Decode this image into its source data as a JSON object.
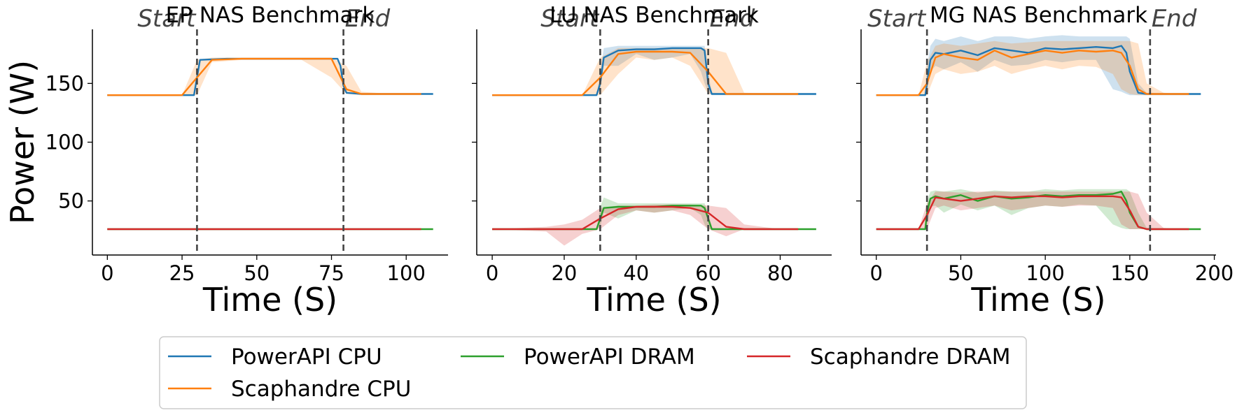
{
  "chart_data": [
    {
      "type": "line",
      "title": "EP NAS Benchmark",
      "xlabel": "Time (S)",
      "ylabel": "Power (W)",
      "xlim": [
        -5,
        114
      ],
      "ylim": [
        4,
        196
      ],
      "xticks": [
        0,
        25,
        50,
        75,
        100
      ],
      "yticks": [
        50,
        100,
        150
      ],
      "markers": [
        {
          "label": "Start",
          "x": 30
        },
        {
          "label": "End",
          "x": 79
        }
      ],
      "series": [
        {
          "name": "PowerAPI CPU",
          "color": "#1f77b4",
          "x": [
            0,
            25,
            29,
            30,
            31,
            40,
            50,
            60,
            70,
            75,
            77,
            78,
            79,
            80,
            85,
            95,
            105,
            109
          ],
          "y": [
            140,
            140,
            140,
            155,
            170,
            171,
            171,
            171,
            171,
            171,
            171,
            165,
            148,
            142,
            141,
            141,
            141,
            141
          ],
          "band_low": [],
          "band_high": []
        },
        {
          "name": "Scaphandre CPU",
          "color": "#ff7f0e",
          "x": [
            0,
            25,
            30,
            35,
            45,
            55,
            65,
            75,
            80,
            85,
            95,
            105
          ],
          "y": [
            140,
            140,
            155,
            170,
            171,
            171,
            171,
            171,
            145,
            141,
            141,
            141
          ],
          "band_low": [
            140,
            140,
            140,
            168,
            170,
            170,
            170,
            155,
            141,
            140,
            140,
            140
          ],
          "band_high": [
            140,
            140,
            170,
            172,
            172,
            172,
            172,
            172,
            165,
            143,
            141,
            141
          ]
        },
        {
          "name": "PowerAPI DRAM",
          "color": "#2ca02c",
          "x": [
            0,
            30,
            60,
            90,
            109
          ],
          "y": [
            26,
            26,
            26,
            26,
            26
          ],
          "band_low": [],
          "band_high": []
        },
        {
          "name": "Scaphandre DRAM",
          "color": "#d62728",
          "x": [
            0,
            30,
            60,
            90,
            105
          ],
          "y": [
            26,
            26,
            26,
            26,
            26
          ],
          "band_low": [],
          "band_high": []
        }
      ]
    },
    {
      "type": "line",
      "title": "LU NAS Benchmark",
      "xlabel": "Time (S)",
      "ylabel": "",
      "xlim": [
        -4.3,
        94.3
      ],
      "ylim": [
        4,
        196
      ],
      "xticks": [
        0,
        20,
        40,
        60,
        80
      ],
      "yticks": [
        50,
        100,
        150
      ],
      "markers": [
        {
          "label": "Start",
          "x": 30
        },
        {
          "label": "End",
          "x": 60
        }
      ],
      "series": [
        {
          "name": "PowerAPI CPU",
          "color": "#1f77b4",
          "x": [
            0,
            25,
            29,
            30,
            31,
            35,
            40,
            45,
            50,
            55,
            58,
            59,
            60,
            61,
            70,
            80,
            90
          ],
          "y": [
            140,
            140,
            140,
            150,
            172,
            178,
            179,
            179,
            180,
            180,
            180,
            178,
            150,
            141,
            141,
            141,
            141
          ],
          "band_low": [
            140,
            140,
            140,
            145,
            165,
            165,
            175,
            170,
            172,
            175,
            160,
            150,
            142,
            140,
            140,
            140,
            140
          ],
          "band_high": [
            140,
            140,
            140,
            160,
            180,
            182,
            182,
            182,
            182,
            182,
            182,
            182,
            160,
            142,
            141,
            141,
            141
          ]
        },
        {
          "name": "Scaphandre CPU",
          "color": "#ff7f0e",
          "x": [
            0,
            25,
            30,
            35,
            40,
            45,
            50,
            55,
            60,
            65,
            70,
            80,
            85
          ],
          "y": [
            140,
            140,
            155,
            175,
            177,
            177,
            177,
            176,
            160,
            141,
            141,
            141,
            141
          ],
          "band_low": [
            140,
            140,
            140,
            158,
            172,
            170,
            172,
            165,
            141,
            140,
            140,
            140,
            140
          ],
          "band_high": [
            140,
            140,
            172,
            180,
            180,
            180,
            180,
            180,
            180,
            176,
            142,
            141,
            141
          ]
        },
        {
          "name": "PowerAPI DRAM",
          "color": "#2ca02c",
          "x": [
            0,
            25,
            29,
            30,
            31,
            35,
            40,
            45,
            50,
            55,
            58,
            59,
            60,
            61,
            70,
            80,
            90
          ],
          "y": [
            26,
            26,
            26,
            35,
            44,
            45,
            45,
            45,
            46,
            46,
            46,
            44,
            35,
            26,
            26,
            26,
            26
          ],
          "band_low": [
            26,
            26,
            26,
            28,
            40,
            35,
            42,
            40,
            42,
            44,
            38,
            30,
            26,
            26,
            26,
            26,
            26
          ],
          "band_high": [
            26,
            26,
            26,
            45,
            53,
            48,
            48,
            48,
            48,
            48,
            48,
            48,
            40,
            27,
            26,
            26,
            26
          ]
        },
        {
          "name": "Scaphandre DRAM",
          "color": "#d62728",
          "x": [
            0,
            15,
            20,
            25,
            30,
            35,
            40,
            45,
            50,
            55,
            60,
            65,
            70,
            80,
            85
          ],
          "y": [
            26,
            26,
            26,
            26,
            35,
            43,
            45,
            45,
            45,
            44,
            40,
            28,
            26,
            26,
            26
          ],
          "band_low": [
            26,
            24,
            12,
            22,
            26,
            38,
            42,
            40,
            42,
            38,
            26,
            20,
            26,
            26,
            26
          ],
          "band_high": [
            26,
            28,
            30,
            34,
            44,
            46,
            46,
            47,
            47,
            47,
            46,
            44,
            30,
            26,
            26
          ]
        }
      ]
    },
    {
      "type": "line",
      "title": "MG NAS Benchmark",
      "xlabel": "Time (S)",
      "ylabel": "",
      "xlim": [
        -9,
        201
      ],
      "ylim": [
        4,
        196
      ],
      "xticks": [
        0,
        50,
        100,
        150,
        200
      ],
      "yticks": [
        50,
        100,
        150
      ],
      "markers": [
        {
          "label": "Start",
          "x": 30
        },
        {
          "label": "End",
          "x": 162
        }
      ],
      "series": [
        {
          "name": "PowerAPI CPU",
          "color": "#1f77b4",
          "x": [
            0,
            25,
            29,
            30,
            32,
            35,
            40,
            50,
            60,
            70,
            80,
            90,
            100,
            110,
            120,
            130,
            140,
            145,
            148,
            150,
            155,
            160,
            170,
            180,
            192
          ],
          "y": [
            140,
            140,
            140,
            150,
            170,
            176,
            175,
            178,
            174,
            180,
            178,
            176,
            180,
            179,
            180,
            181,
            180,
            182,
            176,
            160,
            142,
            141,
            141,
            141,
            141
          ],
          "band_low": [
            140,
            140,
            140,
            142,
            160,
            165,
            162,
            168,
            160,
            170,
            165,
            166,
            170,
            168,
            170,
            170,
            145,
            143,
            141,
            140,
            140,
            140,
            140,
            140,
            140
          ],
          "band_high": [
            140,
            140,
            140,
            165,
            182,
            188,
            186,
            190,
            186,
            190,
            190,
            188,
            190,
            191,
            190,
            190,
            190,
            190,
            190,
            188,
            150,
            142,
            141,
            141,
            141
          ]
        },
        {
          "name": "Scaphandre CPU",
          "color": "#ff7f0e",
          "x": [
            0,
            25,
            30,
            35,
            40,
            50,
            60,
            70,
            80,
            90,
            100,
            110,
            120,
            130,
            140,
            145,
            150,
            155,
            160,
            170,
            180,
            185
          ],
          "y": [
            140,
            140,
            150,
            172,
            175,
            172,
            170,
            178,
            172,
            175,
            178,
            176,
            178,
            177,
            178,
            176,
            165,
            145,
            141,
            141,
            141,
            141
          ],
          "band_low": [
            140,
            140,
            140,
            158,
            162,
            158,
            160,
            165,
            158,
            162,
            165,
            162,
            165,
            164,
            158,
            145,
            141,
            140,
            140,
            140,
            140,
            140
          ],
          "band_high": [
            140,
            140,
            168,
            182,
            184,
            182,
            184,
            186,
            184,
            185,
            186,
            186,
            186,
            186,
            186,
            186,
            186,
            184,
            150,
            142,
            141,
            141
          ]
        },
        {
          "name": "PowerAPI DRAM",
          "color": "#2ca02c",
          "x": [
            0,
            25,
            29,
            30,
            32,
            35,
            40,
            50,
            60,
            70,
            80,
            90,
            100,
            110,
            120,
            130,
            140,
            145,
            148,
            150,
            155,
            160,
            170,
            180,
            192
          ],
          "y": [
            26,
            26,
            26,
            40,
            52,
            54,
            52,
            55,
            50,
            54,
            52,
            53,
            55,
            54,
            55,
            55,
            56,
            58,
            50,
            40,
            28,
            26,
            26,
            26,
            26
          ],
          "band_low": [
            26,
            26,
            26,
            28,
            45,
            46,
            40,
            47,
            42,
            46,
            38,
            44,
            46,
            45,
            47,
            46,
            30,
            27,
            26,
            26,
            26,
            26,
            26,
            26,
            26
          ],
          "band_high": [
            26,
            26,
            26,
            50,
            58,
            59,
            58,
            60,
            57,
            59,
            58,
            58,
            60,
            59,
            60,
            60,
            60,
            60,
            60,
            58,
            40,
            27,
            26,
            26,
            26
          ]
        },
        {
          "name": "Scaphandre DRAM",
          "color": "#d62728",
          "x": [
            0,
            25,
            30,
            35,
            40,
            50,
            60,
            70,
            80,
            90,
            100,
            110,
            120,
            130,
            140,
            145,
            150,
            155,
            160,
            170,
            180,
            185
          ],
          "y": [
            26,
            26,
            38,
            53,
            52,
            50,
            52,
            54,
            53,
            54,
            54,
            53,
            54,
            54,
            54,
            53,
            42,
            28,
            26,
            26,
            26,
            26
          ],
          "band_low": [
            26,
            26,
            26,
            44,
            46,
            42,
            44,
            46,
            42,
            44,
            46,
            45,
            46,
            46,
            44,
            30,
            26,
            26,
            26,
            26,
            26,
            26
          ],
          "band_high": [
            26,
            26,
            48,
            58,
            58,
            57,
            58,
            58,
            58,
            58,
            58,
            58,
            58,
            58,
            58,
            58,
            58,
            56,
            40,
            27,
            26,
            26
          ]
        }
      ]
    }
  ],
  "legend": {
    "placement": "bottom-center",
    "entries": [
      {
        "label": "PowerAPI CPU",
        "color": "#1f77b4"
      },
      {
        "label": "Scaphandre CPU",
        "color": "#ff7f0e"
      },
      {
        "label": "PowerAPI DRAM",
        "color": "#2ca02c"
      },
      {
        "label": "Scaphandre DRAM",
        "color": "#d62728"
      }
    ]
  }
}
